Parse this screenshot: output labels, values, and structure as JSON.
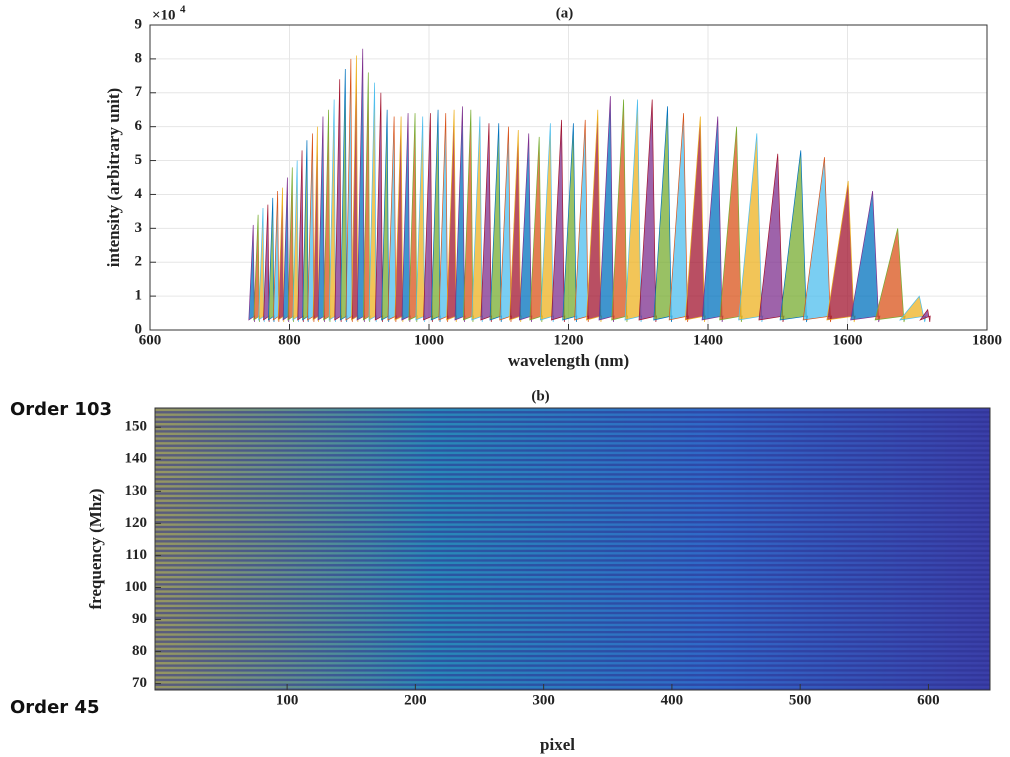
{
  "chart_data": [
    {
      "type": "line",
      "title": "(a)",
      "x_label": "wavelength (nm)",
      "y_label": "intensity (arbitrary unit)",
      "y_scale_label": "×10",
      "y_scale_exponent": "4",
      "x": [
        748,
        755,
        762,
        769,
        776,
        783,
        790,
        797,
        804,
        811,
        818,
        825,
        833,
        840,
        848,
        856,
        864,
        872,
        880,
        888,
        896,
        905,
        913,
        922,
        931,
        940,
        950,
        960,
        970,
        980,
        991,
        1002,
        1013,
        1024,
        1036,
        1048,
        1060,
        1073,
        1086,
        1100,
        1114,
        1128,
        1143,
        1158,
        1174,
        1190,
        1207,
        1224,
        1242,
        1260,
        1279,
        1299,
        1320,
        1342,
        1365,
        1389,
        1414,
        1441,
        1470,
        1500,
        1533,
        1567,
        1601,
        1636,
        1672,
        1703,
        1715
      ],
      "values": [
        31000,
        34000,
        36000,
        37000,
        39000,
        41000,
        42000,
        45000,
        48000,
        50000,
        53000,
        56000,
        58000,
        60000,
        63000,
        65000,
        68000,
        74000,
        77000,
        80000,
        81000,
        83000,
        76000,
        73000,
        70000,
        65000,
        63000,
        63000,
        64000,
        64000,
        63000,
        64000,
        65000,
        64000,
        65000,
        66000,
        65000,
        63000,
        61000,
        61000,
        60000,
        59000,
        58000,
        57000,
        61000,
        62000,
        61000,
        62000,
        65000,
        69000,
        68000,
        68000,
        68000,
        66000,
        64000,
        63000,
        63000,
        60000,
        58000,
        52000,
        53000,
        51000,
        44000,
        41000,
        30000,
        10000,
        6000
      ],
      "colors": [
        "#0072bd",
        "#d95319",
        "#edb120",
        "#7e2f8e",
        "#77ac30",
        "#4dbeee",
        "#a2142f"
      ],
      "xlim": [
        600,
        1800
      ],
      "xticks": [
        600,
        800,
        1000,
        1200,
        1400,
        1600,
        1800
      ],
      "ylim": [
        0,
        90000
      ],
      "yticks": [
        0,
        {
          "value": 10000,
          "label": "1"
        },
        {
          "value": 20000,
          "label": "2"
        },
        {
          "value": 30000,
          "label": "3"
        },
        {
          "value": 40000,
          "label": "4"
        },
        {
          "value": 50000,
          "label": "5"
        },
        {
          "value": 60000,
          "label": "6"
        },
        {
          "value": 70000,
          "label": "7"
        },
        {
          "value": 80000,
          "label": "8"
        },
        {
          "value": 90000,
          "label": "9"
        }
      ],
      "grid": true
    },
    {
      "type": "heatmap",
      "title": "(b)",
      "x_label": "pixel",
      "y_label": "frequency (Mhz)",
      "top_label": "Order 103",
      "bottom_label": "Order 45",
      "colormap": [
        "#3b3fa8",
        "#2a7fd8",
        "#1fb0c0",
        "#c8c43a"
      ],
      "xlim": [
        -3,
        648
      ],
      "xticks": [
        100,
        200,
        300,
        400,
        500,
        600
      ],
      "ylim": [
        68,
        156
      ],
      "yticks": [
        70,
        80,
        90,
        100,
        110,
        120,
        130,
        140,
        150
      ],
      "grid": false
    }
  ]
}
